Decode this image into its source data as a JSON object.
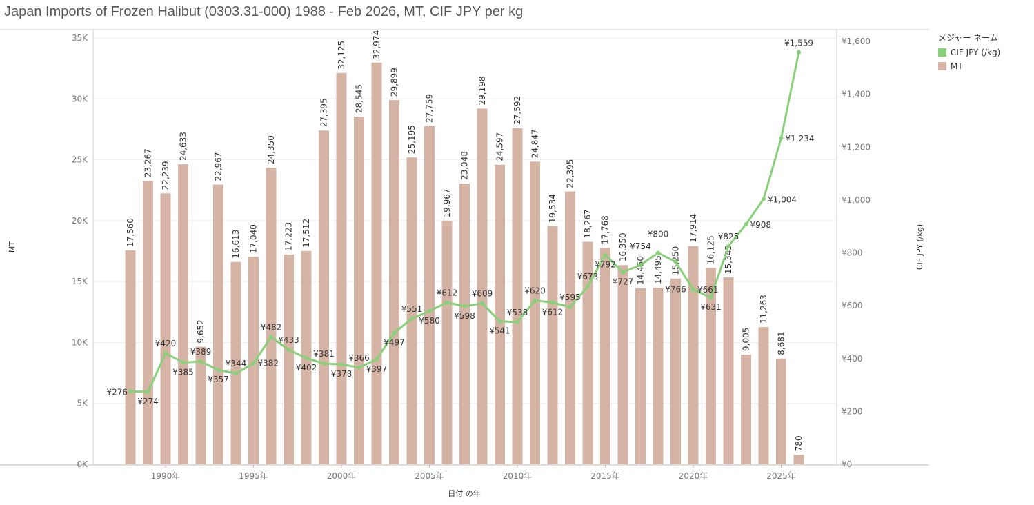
{
  "title": "Japan Imports of Frozen Halibut (0303.31-000) 1988 - Feb 2026, MT, CIF JPY per kg",
  "colors": {
    "bar": "#d6b4a5",
    "line": "#88d07a"
  },
  "legend": {
    "title": "メジャー ネーム",
    "items": [
      "CIF JPY (/kg)",
      "MT"
    ]
  },
  "chart_data": {
    "type": "bar+line",
    "title": "Japan Imports of Frozen Halibut (0303.31-000) 1988 - Feb 2026, MT, CIF JPY per kg",
    "xlabel": "日付 の年",
    "ylabel": "MT",
    "y2label": "CIF JPY (/kg)",
    "ylim": [
      0,
      35000
    ],
    "y2lim": [
      0,
      1600
    ],
    "yticks": [
      "0K",
      "5K",
      "10K",
      "15K",
      "20K",
      "25K",
      "30K",
      "35K"
    ],
    "y2ticks": [
      "¥0",
      "¥200",
      "¥400",
      "¥600",
      "¥800",
      "¥1,000",
      "¥1,200",
      "¥1,400",
      "¥1,600"
    ],
    "xticks": [
      "1990年",
      "1995年",
      "2000年",
      "2005年",
      "2010年",
      "2015年",
      "2020年",
      "2025年"
    ],
    "years": [
      1988,
      1989,
      1990,
      1991,
      1992,
      1993,
      1994,
      1995,
      1996,
      1997,
      1998,
      1999,
      2000,
      2001,
      2002,
      2003,
      2004,
      2005,
      2006,
      2007,
      2008,
      2009,
      2010,
      2011,
      2012,
      2013,
      2014,
      2015,
      2016,
      2017,
      2018,
      2019,
      2020,
      2021,
      2022,
      2023,
      2024,
      2025,
      2026
    ],
    "series": [
      {
        "name": "MT",
        "type": "bar",
        "values": [
          17560,
          23267,
          22239,
          24633,
          9652,
          22967,
          16613,
          17040,
          24350,
          17223,
          17512,
          27395,
          32125,
          28545,
          32974,
          29899,
          25195,
          27759,
          19967,
          23048,
          29198,
          24597,
          27592,
          24847,
          19534,
          22395,
          18267,
          17768,
          16350,
          14450,
          14495,
          15250,
          17914,
          16125,
          15343,
          9005,
          11263,
          8681,
          780
        ]
      },
      {
        "name": "CIF JPY (/kg)",
        "type": "line",
        "values": [
          276,
          274,
          420,
          385,
          389,
          357,
          344,
          382,
          482,
          433,
          402,
          381,
          378,
          366,
          397,
          497,
          551,
          580,
          612,
          598,
          609,
          541,
          538,
          620,
          612,
          595,
          673,
          792,
          727,
          754,
          800,
          766,
          661,
          631,
          825,
          908,
          1004,
          1234,
          1559
        ]
      }
    ]
  }
}
